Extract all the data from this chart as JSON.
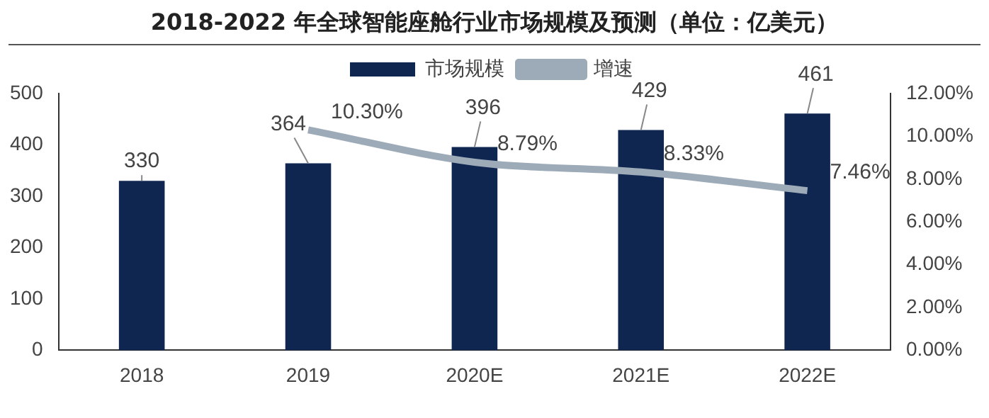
{
  "chart_data": {
    "type": "bar",
    "title": "2018-2022 年全球智能座舱行业市场规模及预测（单位：亿美元）",
    "categories": [
      "2018",
      "2019",
      "2020E",
      "2021E",
      "2022E"
    ],
    "series": [
      {
        "name": "市场规模",
        "color": "#0f2650",
        "values": [
          330,
          364,
          396,
          429,
          461
        ]
      },
      {
        "name": "增速",
        "type": "line",
        "axis": "y2",
        "color": "#9dabb9",
        "values": [
          null,
          10.3,
          8.79,
          8.33,
          7.46
        ],
        "value_labels": [
          null,
          "10.30%",
          "8.79%",
          "8.33%",
          "7.46%"
        ]
      }
    ],
    "ylim": [
      0,
      500
    ],
    "yticks": [
      0,
      100,
      200,
      300,
      400,
      500
    ],
    "y2lim": [
      0,
      12
    ],
    "y2ticks": [
      {
        "value": 0,
        "label": "0.00%"
      },
      {
        "value": 2,
        "label": "2.00%"
      },
      {
        "value": 4,
        "label": "4.00%"
      },
      {
        "value": 6,
        "label": "6.00%"
      },
      {
        "value": 8,
        "label": "8.00%"
      },
      {
        "value": 10,
        "label": "10.00%"
      },
      {
        "value": 12,
        "label": "12.00%"
      }
    ],
    "data_labels": true,
    "legend": "top",
    "grid": false,
    "marker": "none"
  }
}
